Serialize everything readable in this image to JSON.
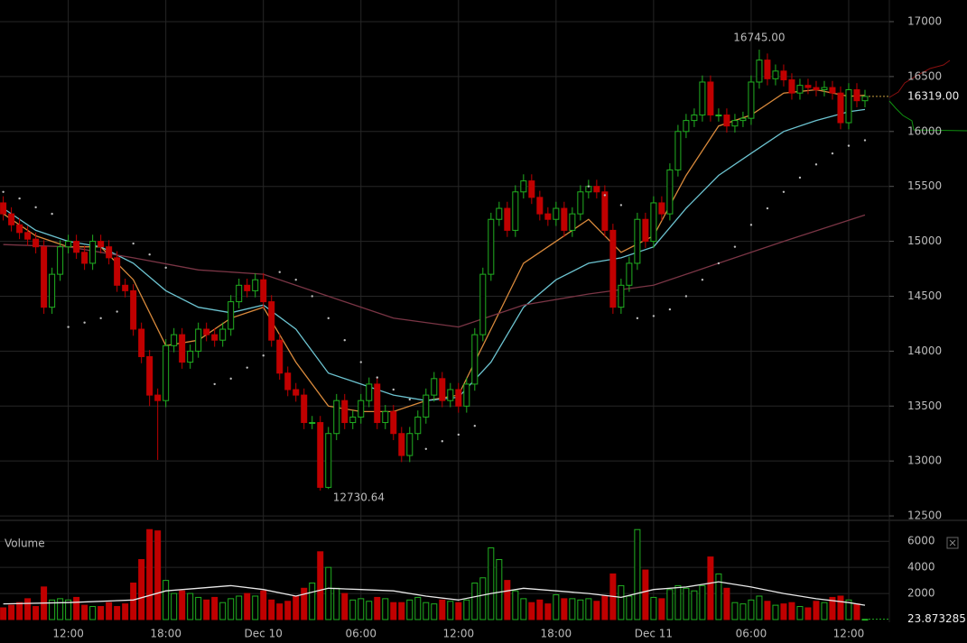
{
  "chart_data": {
    "type": "candlestick",
    "up_color": "#21b021",
    "down_color": "#c00000",
    "xlim": [
      7.8,
      62.5
    ],
    "xticks": [
      {
        "value": 12,
        "label": "12:00"
      },
      {
        "value": 18,
        "label": "18:00"
      },
      {
        "value": 24,
        "label": "Dec 10"
      },
      {
        "value": 30,
        "label": "06:00"
      },
      {
        "value": 36,
        "label": "12:00"
      },
      {
        "value": 42,
        "label": "18:00"
      },
      {
        "value": 48,
        "label": "Dec 11"
      },
      {
        "value": 54,
        "label": "06:00"
      },
      {
        "value": 60,
        "label": "12:00"
      }
    ],
    "ylim": [
      12476,
      17197
    ],
    "yticks": [
      12500,
      13000,
      13500,
      14000,
      14500,
      15000,
      15500,
      16000,
      16500,
      17000
    ],
    "grid": true,
    "x": [
      8,
      8.5,
      9,
      9.5,
      10,
      10.5,
      11,
      11.5,
      12,
      12.5,
      13,
      13.5,
      14,
      14.5,
      15,
      15.5,
      16,
      16.5,
      17,
      17.5,
      18,
      18.5,
      19,
      19.5,
      20,
      20.5,
      21,
      21.5,
      22,
      22.5,
      23,
      23.5,
      24,
      24.5,
      25,
      25.5,
      26,
      26.5,
      27,
      27.5,
      28,
      28.5,
      29,
      29.5,
      30,
      30.5,
      31,
      31.5,
      32,
      32.5,
      33,
      33.5,
      34,
      34.5,
      35,
      35.5,
      36,
      36.5,
      37,
      37.5,
      38,
      38.5,
      39,
      39.5,
      40,
      40.5,
      41,
      41.5,
      42,
      42.5,
      43,
      43.5,
      44,
      44.5,
      45,
      45.5,
      46,
      46.5,
      47,
      47.5,
      48,
      48.5,
      49,
      49.5,
      50,
      50.5,
      51,
      51.5,
      52,
      52.5,
      53,
      53.5,
      54,
      54.5,
      55,
      55.5,
      56,
      56.5,
      57,
      57.5,
      58,
      58.5,
      59,
      59.5,
      60,
      60.5,
      61
    ],
    "open": [
      15350,
      15250,
      15150,
      15080,
      15020,
      14950,
      14400,
      14700,
      14950,
      15000,
      14900,
      14800,
      15000,
      14950,
      14850,
      14600,
      14550,
      14200,
      13950,
      13600,
      13550,
      14050,
      14150,
      13900,
      14000,
      14200,
      14150,
      14100,
      14200,
      14450,
      14600,
      14550,
      14650,
      14450,
      14100,
      13800,
      13650,
      13600,
      13350,
      13350,
      12760,
      13250,
      13550,
      13350,
      13400,
      13550,
      13700,
      13350,
      13450,
      13250,
      13050,
      13250,
      13400,
      13600,
      13750,
      13550,
      13650,
      13500,
      13700,
      14150,
      14700,
      15200,
      15300,
      15100,
      15450,
      15550,
      15400,
      15250,
      15200,
      15300,
      15100,
      15250,
      15450,
      15500,
      15450,
      15100,
      14400,
      14600,
      14800,
      15200,
      15000,
      15350,
      15250,
      15650,
      16000,
      16100,
      16150,
      16450,
      16150,
      16150,
      16050,
      16100,
      16120,
      16450,
      16650,
      16480,
      16550,
      16470,
      16350,
      16420,
      16400,
      16380,
      16400,
      16350,
      16080,
      16380,
      16280
    ],
    "high": [
      15410,
      15310,
      15210,
      15140,
      15080,
      15010,
      14760,
      15010,
      15060,
      15060,
      14960,
      15060,
      15060,
      15010,
      14910,
      14660,
      14610,
      14260,
      14010,
      13660,
      14110,
      14210,
      14210,
      14060,
      14260,
      14260,
      14210,
      14260,
      14510,
      14660,
      14660,
      14710,
      14710,
      14510,
      14160,
      13860,
      13710,
      13660,
      13410,
      13410,
      13310,
      13610,
      13610,
      13460,
      13610,
      13760,
      13760,
      13510,
      13510,
      13310,
      13310,
      13460,
      13660,
      13810,
      13810,
      13710,
      13710,
      13760,
      14210,
      14760,
      15260,
      15360,
      15360,
      15510,
      15610,
      15610,
      15460,
      15310,
      15360,
      15360,
      15310,
      15510,
      15560,
      15560,
      15510,
      15160,
      14660,
      14860,
      15260,
      15260,
      15410,
      15410,
      15710,
      16060,
      16160,
      16210,
      16510,
      16510,
      16210,
      16210,
      16160,
      16180,
      16510,
      16745,
      16710,
      16610,
      16610,
      16530,
      16480,
      16480,
      16460,
      16460,
      16460,
      16410,
      16440,
      16440,
      16379
    ],
    "low": [
      15190,
      15090,
      15020,
      14960,
      14890,
      14340,
      14340,
      14640,
      14890,
      14840,
      14740,
      14740,
      14890,
      14790,
      14540,
      14490,
      14140,
      13890,
      13500,
      13010,
      13490,
      13990,
      13840,
      13840,
      13940,
      14090,
      14040,
      14040,
      14140,
      14390,
      14490,
      14490,
      14390,
      14040,
      13740,
      13590,
      13540,
      13290,
      13290,
      12730.64,
      12745,
      13190,
      13290,
      13290,
      13340,
      13490,
      13290,
      13290,
      13190,
      12990,
      12990,
      13190,
      13340,
      13540,
      13490,
      13490,
      13440,
      13440,
      13640,
      14090,
      14640,
      15140,
      15040,
      15040,
      15390,
      15340,
      15190,
      15140,
      15140,
      15040,
      15040,
      15190,
      15390,
      15390,
      15040,
      14340,
      14340,
      14540,
      14740,
      14940,
      14940,
      15190,
      15190,
      15590,
      15940,
      16040,
      16090,
      16090,
      16090,
      15990,
      15990,
      16040,
      16060,
      16390,
      16420,
      16420,
      16410,
      16290,
      16290,
      16340,
      16320,
      16320,
      16290,
      16020,
      16020,
      16220,
      16220
    ],
    "close": [
      15250,
      15150,
      15080,
      15020,
      14950,
      14400,
      14700,
      14950,
      15000,
      14900,
      14800,
      15000,
      14950,
      14850,
      14600,
      14550,
      14200,
      13950,
      13600,
      13550,
      14050,
      14150,
      13900,
      14000,
      14200,
      14150,
      14100,
      14200,
      14450,
      14600,
      14550,
      14650,
      14450,
      14100,
      13800,
      13650,
      13600,
      13350,
      13350,
      12760,
      13250,
      13550,
      13350,
      13400,
      13550,
      13700,
      13350,
      13450,
      13250,
      13050,
      13250,
      13400,
      13600,
      13750,
      13550,
      13650,
      13500,
      13700,
      14150,
      14700,
      15200,
      15300,
      15100,
      15450,
      15550,
      15400,
      15250,
      15200,
      15300,
      15100,
      15250,
      15450,
      15500,
      15450,
      15100,
      14400,
      14600,
      14800,
      15200,
      15000,
      15350,
      15250,
      15650,
      16000,
      16100,
      16150,
      16450,
      16150,
      16150,
      16050,
      16100,
      16120,
      16450,
      16650,
      16480,
      16550,
      16470,
      16350,
      16420,
      16400,
      16380,
      16400,
      16350,
      16080,
      16380,
      16280,
      16319
    ],
    "high_label": {
      "value": 16745,
      "label": "16745.00",
      "x": 54.5
    },
    "low_label": {
      "value": 12730.64,
      "label": "12730.64",
      "x": 27.5
    },
    "last_price": {
      "value": 16319,
      "label": "16319.00"
    },
    "lines": [
      {
        "color": "#d98a3c",
        "x": [
          8,
          10,
          12,
          14,
          16,
          18,
          20,
          22,
          24,
          26,
          28,
          30,
          32,
          34,
          36,
          38,
          40,
          42,
          44,
          46,
          48,
          50,
          52,
          54,
          56,
          58,
          60,
          61
        ],
        "values": [
          15250,
          15050,
          14950,
          14950,
          14650,
          14050,
          14100,
          14300,
          14400,
          13900,
          13500,
          13450,
          13450,
          13550,
          13600,
          14200,
          14800,
          15000,
          15200,
          14900,
          15050,
          15600,
          16050,
          16150,
          16350,
          16380,
          16320,
          16330
        ]
      },
      {
        "color": "#6cc3d0",
        "x": [
          8,
          10,
          12,
          14,
          16,
          18,
          20,
          22,
          24,
          26,
          28,
          30,
          32,
          34,
          36,
          38,
          40,
          42,
          44,
          46,
          48,
          50,
          52,
          54,
          56,
          58,
          60,
          61
        ],
        "values": [
          15300,
          15100,
          15000,
          14950,
          14800,
          14550,
          14400,
          14350,
          14420,
          14200,
          13800,
          13700,
          13600,
          13550,
          13580,
          13900,
          14400,
          14650,
          14800,
          14850,
          14950,
          15300,
          15600,
          15800,
          16000,
          16100,
          16180,
          16200
        ]
      },
      {
        "color": "#7a3545",
        "x": [
          8,
          12,
          16,
          20,
          24,
          28,
          32,
          36,
          40,
          44,
          48,
          52,
          56,
          61
        ],
        "values": [
          14970,
          14950,
          14850,
          14740,
          14700,
          14500,
          14300,
          14220,
          14420,
          14520,
          14600,
          14800,
          15000,
          15240
        ]
      }
    ],
    "sar": {
      "color": "#bbbbbb",
      "x": [
        8,
        9,
        10,
        11,
        12,
        13,
        14,
        15,
        16,
        17,
        18,
        21,
        22,
        23,
        24,
        25,
        26,
        27,
        28,
        29,
        30,
        31,
        32,
        33,
        34,
        35,
        36,
        37,
        44,
        45,
        46,
        47,
        48,
        49,
        50,
        51,
        52,
        53,
        54,
        55,
        56,
        57,
        58,
        59,
        60,
        61
      ],
      "values": [
        15450,
        15390,
        15310,
        15250,
        14220,
        14260,
        14300,
        14360,
        14980,
        14880,
        14760,
        13700,
        13750,
        13850,
        13960,
        14720,
        14650,
        14500,
        14300,
        14100,
        13900,
        13760,
        13650,
        13560,
        13110,
        13180,
        13240,
        13320,
        15500,
        15420,
        15330,
        14300,
        14320,
        14380,
        14500,
        14650,
        14800,
        14950,
        15150,
        15300,
        15450,
        15580,
        15700,
        15800,
        15870,
        15920
      ]
    },
    "volume": {
      "label": "Volume",
      "ylim": [
        0,
        7400
      ],
      "yticks": [
        2000,
        4000,
        6000
      ],
      "values": [
        900,
        1100,
        1300,
        1600,
        1000,
        2500,
        1500,
        1600,
        1500,
        1700,
        1100,
        1000,
        1000,
        1300,
        1000,
        1200,
        2800,
        4600,
        6900,
        6800,
        3000,
        2000,
        2200,
        2000,
        1700,
        1500,
        1700,
        1300,
        1600,
        1800,
        2000,
        1800,
        2200,
        1500,
        1200,
        1400,
        1800,
        2400,
        2800,
        5200,
        4000,
        2400,
        2000,
        1500,
        1600,
        1400,
        1700,
        1600,
        1300,
        1300,
        1500,
        1700,
        1300,
        1200,
        1500,
        1400,
        1300,
        1500,
        2800,
        3200,
        5500,
        4600,
        3000,
        2200,
        1600,
        1300,
        1500,
        1200,
        1900,
        1600,
        1600,
        1500,
        1600,
        1400,
        1800,
        3500,
        2600,
        1800,
        6900,
        3800,
        1700,
        1600,
        2300,
        2600,
        2400,
        2200,
        2600,
        4800,
        3500,
        2400,
        1300,
        1200,
        1500,
        1800,
        1400,
        1100,
        1200,
        1300,
        1000,
        900,
        1400,
        1300,
        1700,
        1800,
        1500,
        1200,
        23.873285
      ],
      "ma": {
        "color": "#e8e8e8",
        "x": [
          8,
          12,
          16,
          18,
          20,
          22,
          24,
          26,
          28,
          30,
          32,
          34,
          36,
          38,
          40,
          42,
          44,
          46,
          48,
          50,
          52,
          54,
          56,
          58,
          60,
          61
        ],
        "values": [
          1200,
          1300,
          1500,
          2200,
          2400,
          2600,
          2300,
          1800,
          2400,
          2300,
          2200,
          1800,
          1500,
          2000,
          2400,
          2200,
          2000,
          1700,
          2300,
          2500,
          2900,
          2500,
          2000,
          1600,
          1300,
          1100
        ]
      }
    }
  }
}
